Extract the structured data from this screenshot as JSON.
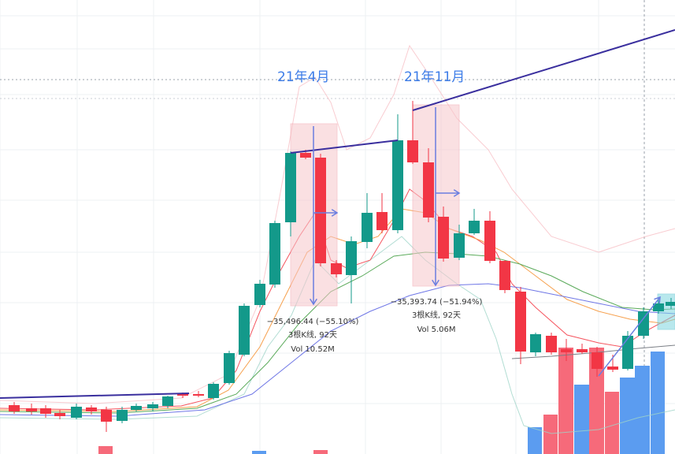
{
  "chart_data": {
    "type": "candlestick",
    "title": "",
    "colors": {
      "up": "#13998a",
      "down": "#f23645",
      "trendline": "#3a2f9e",
      "measure_box": "#f7c7cc",
      "measure_arrow": "#6a7ee0",
      "period_label": "#3d7de8",
      "vol_up": "#5b9cf0",
      "vol_down": "#f66a7a",
      "ma_short": "#f5545e",
      "ma_mid": "#f6a04d",
      "ma_long": "#5aaa5a",
      "ma_longest": "#6f77e6",
      "band": "#f6b6bd",
      "band_low": "#9fd4c8"
    },
    "period_labels": [
      "21年4月",
      "21年11月"
    ],
    "measurements": [
      {
        "change": "−35,496.44 (−55.10%)",
        "bars": "3根K线, 92天",
        "volume": "Vol 10.52M"
      },
      {
        "change": "−35,393.74 (−51.94%)",
        "bars": "3根K线, 92天",
        "volume": "Vol 5.06M"
      }
    ]
  }
}
